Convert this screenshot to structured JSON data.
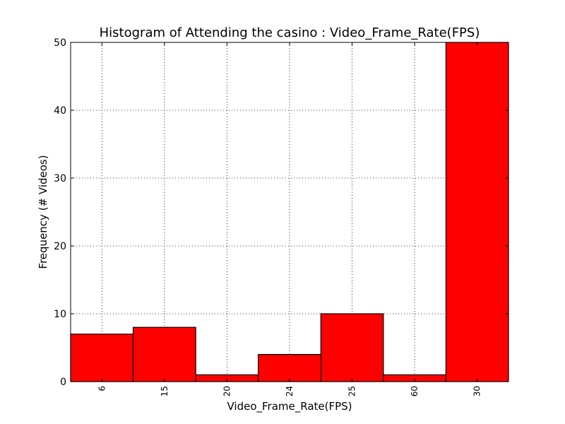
{
  "chart_data": {
    "type": "bar",
    "title": "Histogram of Attending the casino : Video_Frame_Rate(FPS)",
    "xlabel": "Video_Frame_Rate(FPS)",
    "ylabel": "Frequency (# Videos)",
    "categories": [
      "6",
      "15",
      "20",
      "24",
      "25",
      "60",
      "30"
    ],
    "values": [
      7,
      8,
      1,
      4,
      10,
      1,
      50
    ],
    "ylim": [
      0,
      50
    ],
    "yticks": [
      "0",
      "10",
      "20",
      "30",
      "40",
      "50"
    ],
    "grid": true,
    "bar_color": "#ff0000",
    "edge_color": "#000000"
  }
}
